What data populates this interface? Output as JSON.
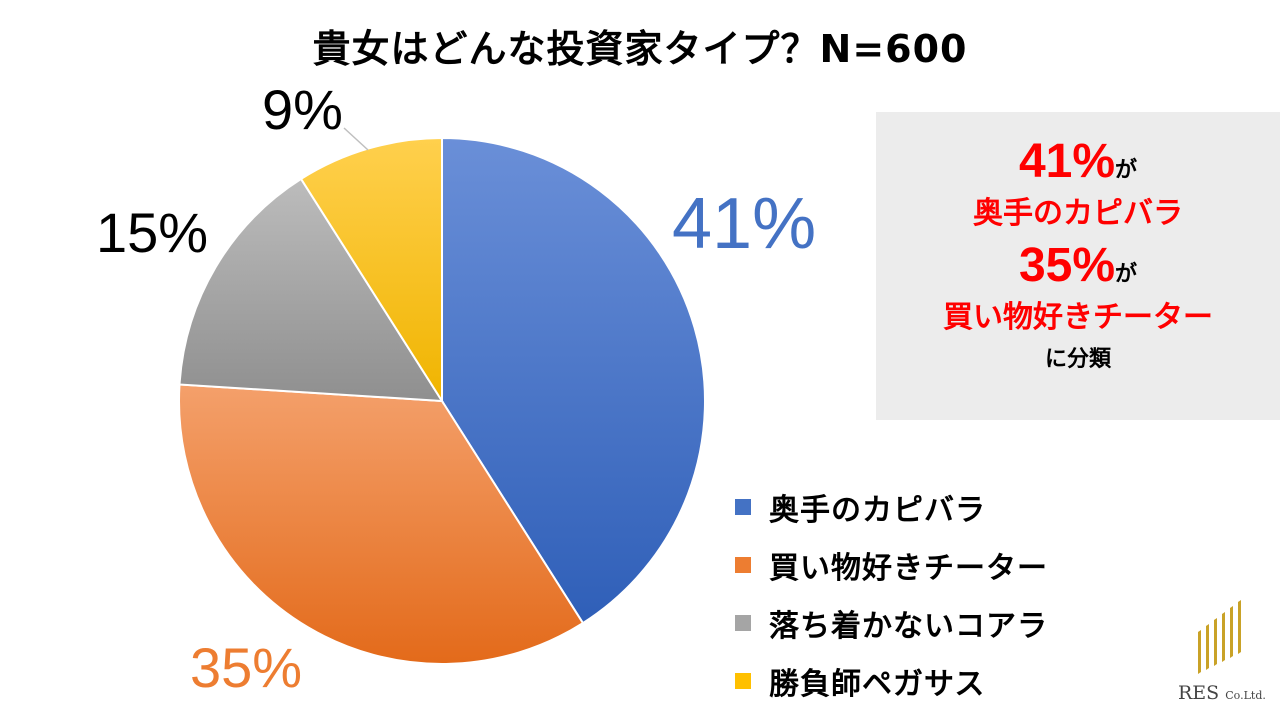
{
  "title": "貴女はどんな投資家タイプ？N=600",
  "chart_data": {
    "type": "pie",
    "categories": [
      "奥手のカピバラ",
      "買い物好きチーター",
      "落ち着かないコアラ",
      "勝負師ペガサス"
    ],
    "values": [
      41,
      35,
      15,
      9
    ],
    "labels": [
      "41%",
      "35%",
      "15%",
      "9%"
    ],
    "colors": [
      "#4472c4",
      "#ed7d31",
      "#a5a5a5",
      "#ffc000"
    ],
    "legend_position": "bottom-right"
  },
  "callout": {
    "pct1": "41%",
    "ga1": "が",
    "name1": "奥手のカピバラ",
    "pct2": "35%",
    "ga2": "が",
    "name2": "買い物好きチーター",
    "last": "に分類"
  },
  "logo": {
    "name": "RES",
    "suffix": "Co.Ltd."
  }
}
